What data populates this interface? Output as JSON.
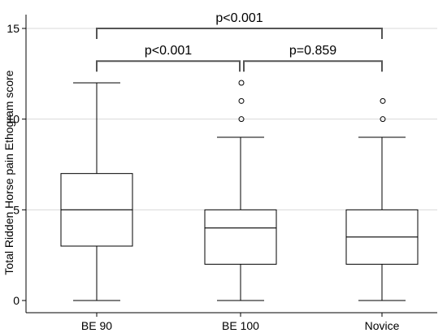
{
  "chart_data": {
    "type": "box",
    "ylabel": "Total Ridden Horse pain Ethogram score",
    "ylim": [
      0,
      15
    ],
    "yticks": [
      0,
      5,
      10,
      15
    ],
    "grid": "horizontal",
    "categories": [
      "BE 90",
      "BE 100",
      "Novice"
    ],
    "boxes": [
      {
        "category": "BE 90",
        "min": 0,
        "q1": 3,
        "median": 5,
        "q3": 7,
        "max": 12,
        "outliers": []
      },
      {
        "category": "BE 100",
        "min": 0,
        "q1": 2,
        "median": 4,
        "q3": 5,
        "max": 9,
        "outliers": [
          10,
          11,
          12
        ]
      },
      {
        "category": "Novice",
        "min": 0,
        "q1": 2,
        "median": 3.5,
        "q3": 5,
        "max": 9,
        "outliers": [
          10,
          11
        ]
      }
    ],
    "comparisons": [
      {
        "from": "BE 90",
        "to": "BE 100",
        "label": "p<0.001"
      },
      {
        "from": "BE 100",
        "to": "Novice",
        "label": "p=0.859"
      },
      {
        "from": "BE 90",
        "to": "Novice",
        "label": "p<0.001"
      }
    ]
  }
}
